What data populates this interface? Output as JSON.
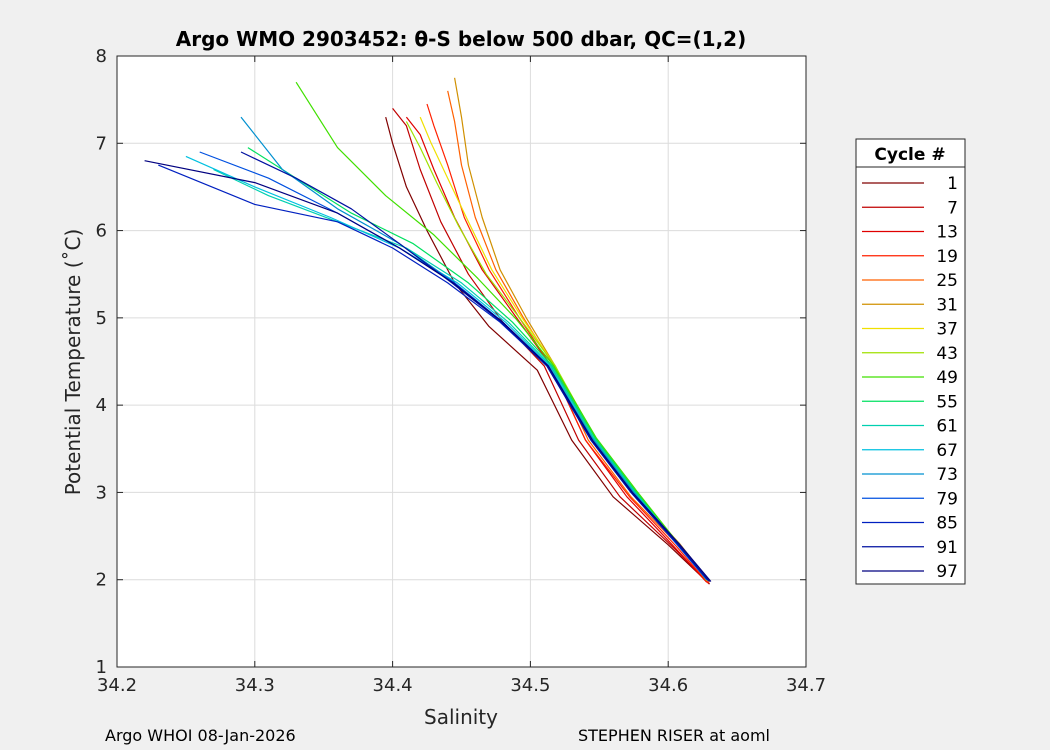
{
  "chart_data": {
    "type": "line",
    "title": "Argo WMO 2903452: θ-S below 500 dbar,  QC=(1,2)",
    "xlabel": "Salinity",
    "ylabel": "Potential Temperature (˚C)",
    "xlim": [
      34.2,
      34.7
    ],
    "ylim": [
      1,
      8
    ],
    "xticks": [
      "34.2",
      "34.3",
      "34.4",
      "34.5",
      "34.6",
      "34.7"
    ],
    "yticks": [
      "1",
      "2",
      "3",
      "4",
      "5",
      "6",
      "7",
      "8"
    ],
    "grid": true,
    "legend_position": "right",
    "legend_title": "Cycle #",
    "series": [
      {
        "name": "1",
        "color": "#800000",
        "values": [
          [
            34.63,
            1.95
          ],
          [
            34.6,
            2.4
          ],
          [
            34.56,
            2.95
          ],
          [
            34.53,
            3.6
          ],
          [
            34.505,
            4.4
          ],
          [
            34.47,
            4.9
          ],
          [
            34.445,
            5.4
          ],
          [
            34.425,
            6.0
          ],
          [
            34.41,
            6.5
          ],
          [
            34.4,
            7.0
          ],
          [
            34.395,
            7.3
          ]
        ]
      },
      {
        "name": "7",
        "color": "#c00000",
        "values": [
          [
            34.63,
            1.95
          ],
          [
            34.605,
            2.35
          ],
          [
            34.565,
            2.95
          ],
          [
            34.535,
            3.6
          ],
          [
            34.51,
            4.45
          ],
          [
            34.48,
            4.95
          ],
          [
            34.455,
            5.5
          ],
          [
            34.435,
            6.1
          ],
          [
            34.42,
            6.7
          ],
          [
            34.41,
            7.2
          ],
          [
            34.4,
            7.4
          ]
        ]
      },
      {
        "name": "13",
        "color": "#e00000",
        "values": [
          [
            34.628,
            1.97
          ],
          [
            34.603,
            2.4
          ],
          [
            34.57,
            2.95
          ],
          [
            34.54,
            3.6
          ],
          [
            34.515,
            4.45
          ],
          [
            34.49,
            5.0
          ],
          [
            34.465,
            5.55
          ],
          [
            34.445,
            6.15
          ],
          [
            34.43,
            6.7
          ],
          [
            34.42,
            7.1
          ],
          [
            34.41,
            7.3
          ]
        ]
      },
      {
        "name": "19",
        "color": "#ff2000",
        "values": [
          [
            34.629,
            1.96
          ],
          [
            34.606,
            2.38
          ],
          [
            34.572,
            2.95
          ],
          [
            34.54,
            3.6
          ],
          [
            34.515,
            4.45
          ],
          [
            34.492,
            5.0
          ],
          [
            34.47,
            5.55
          ],
          [
            34.452,
            6.15
          ],
          [
            34.44,
            6.75
          ],
          [
            34.43,
            7.2
          ],
          [
            34.425,
            7.45
          ]
        ]
      },
      {
        "name": "25",
        "color": "#ff6000",
        "values": [
          [
            34.63,
            1.97
          ],
          [
            34.607,
            2.4
          ],
          [
            34.573,
            2.95
          ],
          [
            34.542,
            3.6
          ],
          [
            34.517,
            4.45
          ],
          [
            34.495,
            5.0
          ],
          [
            34.475,
            5.55
          ],
          [
            34.46,
            6.15
          ],
          [
            34.45,
            6.75
          ],
          [
            34.445,
            7.25
          ],
          [
            34.44,
            7.6
          ]
        ]
      },
      {
        "name": "31",
        "color": "#d09000",
        "values": [
          [
            34.63,
            1.98
          ],
          [
            34.608,
            2.42
          ],
          [
            34.575,
            2.98
          ],
          [
            34.545,
            3.6
          ],
          [
            34.518,
            4.45
          ],
          [
            34.497,
            5.0
          ],
          [
            34.478,
            5.55
          ],
          [
            34.465,
            6.15
          ],
          [
            34.455,
            6.75
          ],
          [
            34.45,
            7.3
          ],
          [
            34.445,
            7.75
          ]
        ]
      },
      {
        "name": "37",
        "color": "#f0e000",
        "values": [
          [
            34.629,
            1.99
          ],
          [
            34.607,
            2.43
          ],
          [
            34.576,
            3.0
          ],
          [
            34.546,
            3.6
          ],
          [
            34.518,
            4.45
          ],
          [
            34.494,
            5.0
          ],
          [
            34.472,
            5.55
          ],
          [
            34.455,
            6.1
          ],
          [
            34.44,
            6.6
          ],
          [
            34.428,
            7.0
          ],
          [
            34.42,
            7.3
          ]
        ]
      },
      {
        "name": "43",
        "color": "#a0e000",
        "values": [
          [
            34.628,
            1.99
          ],
          [
            34.606,
            2.44
          ],
          [
            34.577,
            3.0
          ],
          [
            34.548,
            3.6
          ],
          [
            34.518,
            4.45
          ],
          [
            34.492,
            5.0
          ],
          [
            34.468,
            5.5
          ],
          [
            34.448,
            6.05
          ],
          [
            34.432,
            6.55
          ],
          [
            34.42,
            6.95
          ],
          [
            34.41,
            7.25
          ]
        ]
      },
      {
        "name": "49",
        "color": "#40e000",
        "values": [
          [
            34.629,
            1.99
          ],
          [
            34.606,
            2.44
          ],
          [
            34.577,
            3.02
          ],
          [
            34.548,
            3.62
          ],
          [
            34.517,
            4.45
          ],
          [
            34.49,
            4.98
          ],
          [
            34.462,
            5.45
          ],
          [
            34.43,
            5.95
          ],
          [
            34.395,
            6.4
          ],
          [
            34.36,
            6.95
          ],
          [
            34.33,
            7.7
          ]
        ]
      },
      {
        "name": "55",
        "color": "#00e060",
        "values": [
          [
            34.628,
            2.0
          ],
          [
            34.605,
            2.44
          ],
          [
            34.576,
            3.02
          ],
          [
            34.547,
            3.62
          ],
          [
            34.516,
            4.45
          ],
          [
            34.487,
            4.95
          ],
          [
            34.455,
            5.4
          ],
          [
            34.415,
            5.85
          ],
          [
            34.37,
            6.2
          ],
          [
            34.33,
            6.6
          ],
          [
            34.295,
            6.95
          ]
        ]
      },
      {
        "name": "61",
        "color": "#00d0b0",
        "values": [
          [
            34.628,
            2.0
          ],
          [
            34.605,
            2.44
          ],
          [
            34.575,
            3.02
          ],
          [
            34.546,
            3.62
          ],
          [
            34.515,
            4.45
          ],
          [
            34.484,
            4.95
          ],
          [
            34.45,
            5.4
          ],
          [
            34.41,
            5.8
          ],
          [
            34.36,
            6.1
          ],
          [
            34.31,
            6.4
          ],
          [
            34.27,
            6.7
          ]
        ]
      },
      {
        "name": "67",
        "color": "#00c0e0",
        "values": [
          [
            34.628,
            2.0
          ],
          [
            34.605,
            2.44
          ],
          [
            34.574,
            3.02
          ],
          [
            34.545,
            3.62
          ],
          [
            34.514,
            4.45
          ],
          [
            34.482,
            4.95
          ],
          [
            34.447,
            5.4
          ],
          [
            34.405,
            5.8
          ],
          [
            34.355,
            6.15
          ],
          [
            34.3,
            6.5
          ],
          [
            34.25,
            6.85
          ]
        ]
      },
      {
        "name": "73",
        "color": "#0090d0",
        "values": [
          [
            34.628,
            2.0
          ],
          [
            34.605,
            2.43
          ],
          [
            34.574,
            3.02
          ],
          [
            34.545,
            3.62
          ],
          [
            34.513,
            4.45
          ],
          [
            34.48,
            4.95
          ],
          [
            34.445,
            5.4
          ],
          [
            34.405,
            5.85
          ],
          [
            34.36,
            6.25
          ],
          [
            34.32,
            6.7
          ],
          [
            34.29,
            7.3
          ]
        ]
      },
      {
        "name": "79",
        "color": "#0050e0",
        "values": [
          [
            34.628,
            2.0
          ],
          [
            34.605,
            2.43
          ],
          [
            34.573,
            3.0
          ],
          [
            34.544,
            3.6
          ],
          [
            34.513,
            4.45
          ],
          [
            34.48,
            4.95
          ],
          [
            34.445,
            5.4
          ],
          [
            34.405,
            5.8
          ],
          [
            34.36,
            6.2
          ],
          [
            34.31,
            6.6
          ],
          [
            34.26,
            6.9
          ]
        ]
      },
      {
        "name": "85",
        "color": "#0020c0",
        "values": [
          [
            34.629,
            1.99
          ],
          [
            34.606,
            2.42
          ],
          [
            34.573,
            3.0
          ],
          [
            34.544,
            3.6
          ],
          [
            34.512,
            4.45
          ],
          [
            34.478,
            4.95
          ],
          [
            34.44,
            5.4
          ],
          [
            34.4,
            5.8
          ],
          [
            34.36,
            6.1
          ],
          [
            34.3,
            6.3
          ],
          [
            34.23,
            6.75
          ]
        ]
      },
      {
        "name": "91",
        "color": "#0010a0",
        "values": [
          [
            34.63,
            1.98
          ],
          [
            34.607,
            2.41
          ],
          [
            34.573,
            3.0
          ],
          [
            34.544,
            3.6
          ],
          [
            34.512,
            4.45
          ],
          [
            34.479,
            4.95
          ],
          [
            34.443,
            5.4
          ],
          [
            34.405,
            5.85
          ],
          [
            34.37,
            6.25
          ],
          [
            34.33,
            6.6
          ],
          [
            34.29,
            6.9
          ]
        ]
      },
      {
        "name": "97",
        "color": "#000080",
        "values": [
          [
            34.631,
            1.98
          ],
          [
            34.608,
            2.41
          ],
          [
            34.574,
            3.0
          ],
          [
            34.545,
            3.6
          ],
          [
            34.513,
            4.45
          ],
          [
            34.48,
            4.95
          ],
          [
            34.444,
            5.4
          ],
          [
            34.405,
            5.8
          ],
          [
            34.36,
            6.2
          ],
          [
            34.3,
            6.55
          ],
          [
            34.22,
            6.8
          ]
        ]
      }
    ]
  },
  "footer": {
    "left": "Argo WHOI 08-Jan-2026",
    "right": "STEPHEN RISER at aoml"
  }
}
